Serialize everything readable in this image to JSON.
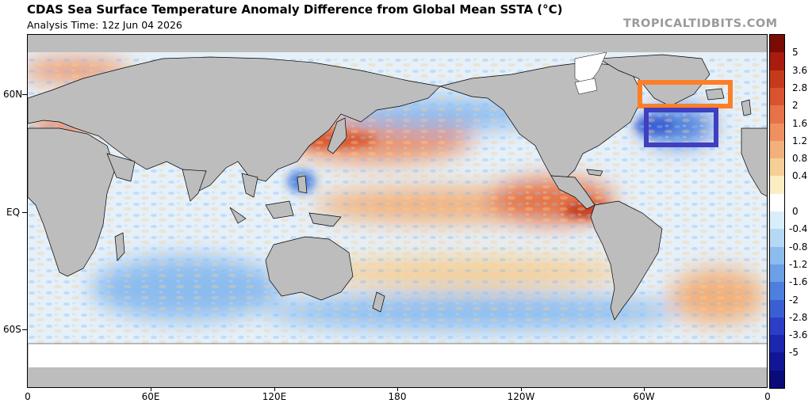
{
  "header": {
    "title": "CDAS Sea Surface Temperature Anomaly Difference from Global Mean SSTA (°C)",
    "analysis_time": "Analysis Time: 12z Jun 04 2026",
    "credit": "TROPICALTIDBITS.COM"
  },
  "map": {
    "lat_labels": [
      "60N",
      "EQ",
      "60S"
    ],
    "lon_labels": [
      "0",
      "60E",
      "120E",
      "180",
      "120W",
      "60W",
      "0"
    ],
    "land_color": "#bdbdbd",
    "ice_color": "#ffffff",
    "ocean_neutral_color": "#ffffff"
  },
  "annotations": [
    {
      "name": "orange-box",
      "color": "#ff7f27",
      "region": "North Atlantic near southern Greenland"
    },
    {
      "name": "blue-box",
      "color": "#3f3fbf",
      "region": "North Atlantic east of Newfoundland"
    }
  ],
  "colorbar": {
    "labels": [
      "5",
      "3.6",
      "2.8",
      "2",
      "1.6",
      "1.2",
      "0.8",
      "0.4",
      "0",
      "-0.4",
      "-0.8",
      "-1.2",
      "-1.6",
      "-2",
      "-2.8",
      "-3.6",
      "-5"
    ],
    "colors": [
      "#7a0b05",
      "#a91b0c",
      "#c63a1c",
      "#d9542e",
      "#e67245",
      "#ee9060",
      "#f2b07c",
      "#f5cf96",
      "#fbeec2",
      "#ffffff",
      "#d9eefb",
      "#b5d9f5",
      "#8cbcee",
      "#6b9fe6",
      "#4d80dd",
      "#3a5fd2",
      "#2a3fc6",
      "#1c26b0",
      "#101696",
      "#0a0a78"
    ]
  }
}
